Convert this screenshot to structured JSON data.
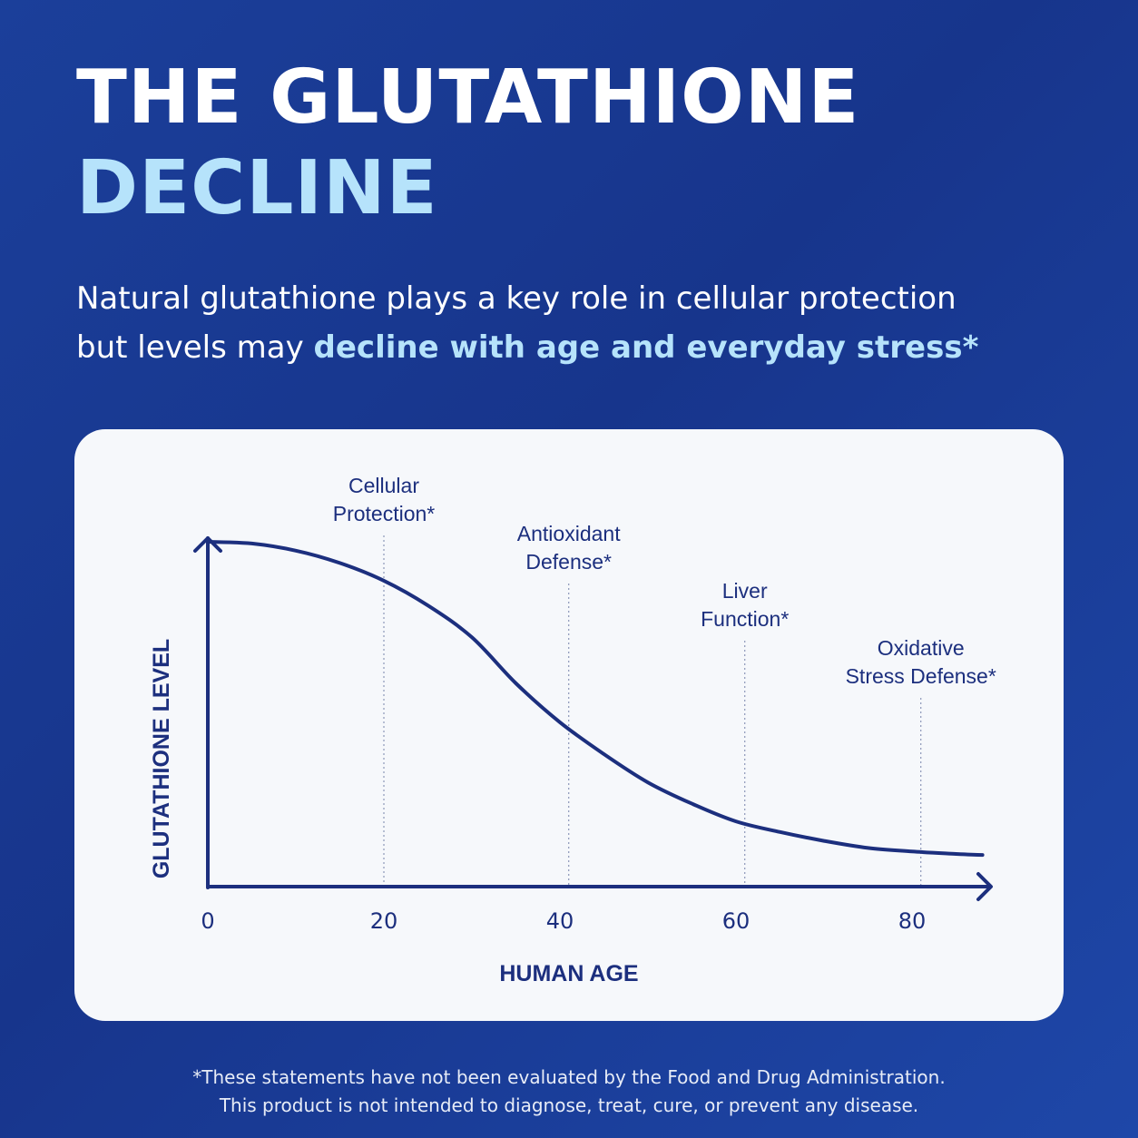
{
  "header": {
    "title_line1": "THE GLUTATHIONE",
    "title_line2": "DECLINE",
    "subtitle_line1": "Natural glutathione plays a key role in cellular protection",
    "subtitle_line2_plain": "but levels may ",
    "subtitle_line2_highlight": "decline with age and everyday stress*"
  },
  "colors": {
    "background": "#1b3f9a",
    "accent_light_blue": "#b6e3fb",
    "chart_navy": "#1c2f7e",
    "card": "#f6f8fb"
  },
  "chart_data": {
    "type": "line",
    "xlabel": "HUMAN AGE",
    "ylabel": "GLUTATHIONE LEVEL",
    "xlim": [
      0,
      88
    ],
    "ylim": [
      0,
      100
    ],
    "x_ticks": [
      0,
      20,
      40,
      60,
      80
    ],
    "y_ticks_shown": false,
    "grid": false,
    "series": [
      {
        "x": [
          0,
          5,
          10,
          15,
          20,
          25,
          30,
          35,
          40,
          45,
          50,
          55,
          60,
          65,
          70,
          75,
          80,
          85,
          88
        ],
        "y": [
          100,
          99.5,
          97.5,
          94,
          89,
          82,
          73,
          60,
          49,
          40,
          32,
          26,
          21,
          18,
          15.5,
          13.5,
          12.5,
          11.8,
          11.5
        ]
      }
    ],
    "annotations": [
      {
        "x": 20,
        "line1": "Cellular",
        "line2": "Protection*"
      },
      {
        "x": 41,
        "line1": "Antioxidant",
        "line2": "Defense*"
      },
      {
        "x": 61,
        "line1": "Liver",
        "line2": "Function*"
      },
      {
        "x": 81,
        "line1": "Oxidative",
        "line2": "Stress Defense*"
      }
    ]
  },
  "footnote": {
    "line1": "*These statements have not been evaluated by the Food and Drug Administration.",
    "line2": "This product is not intended to diagnose, treat, cure, or prevent any disease."
  }
}
